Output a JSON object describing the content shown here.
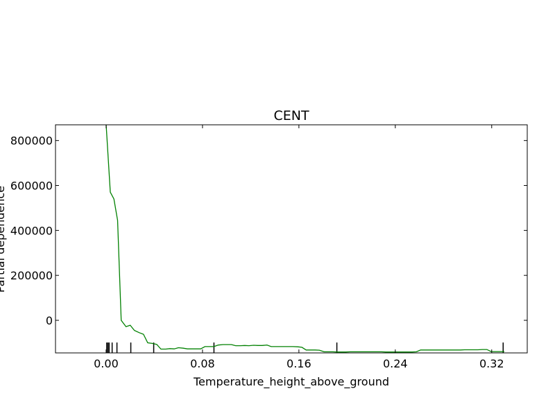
{
  "chart_data": {
    "type": "line",
    "title": "CENT",
    "xlabel": "Temperature_height_above_ground",
    "ylabel": "Partial dependence",
    "xlim": [
      -0.042,
      0.3495
    ],
    "ylim": [
      -145000,
      870000
    ],
    "x_ticks": [
      0.0,
      0.08,
      0.16,
      0.24,
      0.32
    ],
    "x_tick_labels": [
      "0.00",
      "0.08",
      "0.16",
      "0.24",
      "0.32"
    ],
    "y_ticks": [
      0,
      200000,
      400000,
      600000,
      800000
    ],
    "y_tick_labels": [
      "0",
      "200000",
      "400000",
      "600000",
      "800000"
    ],
    "grid": false,
    "series": [
      {
        "color": "#008000",
        "x": [
          0.0,
          0.0035,
          0.0065,
          0.0095,
          0.0125,
          0.0165,
          0.02,
          0.0235,
          0.0275,
          0.031,
          0.0345,
          0.0385,
          0.042,
          0.0455,
          0.0495,
          0.053,
          0.0565,
          0.06,
          0.064,
          0.0675,
          0.071,
          0.075,
          0.0785,
          0.082,
          0.086,
          0.0895,
          0.093,
          0.097,
          0.1005,
          0.104,
          0.1075,
          0.1115,
          0.115,
          0.1185,
          0.1225,
          0.126,
          0.1295,
          0.1335,
          0.137,
          0.1405,
          0.1445,
          0.148,
          0.1515,
          0.155,
          0.159,
          0.1625,
          0.166,
          0.17,
          0.1735,
          0.177,
          0.181,
          0.1845,
          0.188,
          0.1915,
          0.1955,
          0.199,
          0.2025,
          0.2065,
          0.21,
          0.2135,
          0.2175,
          0.221,
          0.2245,
          0.2285,
          0.232,
          0.2355,
          0.239,
          0.243,
          0.2465,
          0.25,
          0.254,
          0.2575,
          0.261,
          0.265,
          0.2685,
          0.272,
          0.276,
          0.2795,
          0.283,
          0.2865,
          0.2905,
          0.294,
          0.2975,
          0.3015,
          0.305,
          0.3085,
          0.3125,
          0.316,
          0.3195,
          0.3235,
          0.327,
          0.3305
        ],
        "y": [
          870000,
          570000,
          540000,
          445000,
          0,
          -28000,
          -22000,
          -45000,
          -55000,
          -62000,
          -100000,
          -103000,
          -107000,
          -128000,
          -128000,
          -126000,
          -127000,
          -122000,
          -124000,
          -127000,
          -127000,
          -127000,
          -127000,
          -117000,
          -117000,
          -117000,
          -110000,
          -108000,
          -108000,
          -108000,
          -113000,
          -113000,
          -112000,
          -113000,
          -111000,
          -112000,
          -112000,
          -110000,
          -117000,
          -117000,
          -117000,
          -117000,
          -117000,
          -117000,
          -118000,
          -120000,
          -132000,
          -132000,
          -132000,
          -133000,
          -140000,
          -140000,
          -140000,
          -141000,
          -141000,
          -141000,
          -140000,
          -140000,
          -140000,
          -140000,
          -140000,
          -140000,
          -140000,
          -140000,
          -141000,
          -141000,
          -141000,
          -141000,
          -141000,
          -141000,
          -141000,
          -140000,
          -132000,
          -132000,
          -132000,
          -132000,
          -132000,
          -132000,
          -132000,
          -132000,
          -132000,
          -132000,
          -131000,
          -131000,
          -131000,
          -131000,
          -130000,
          -130000,
          -139000,
          -139000,
          -139000,
          -139000
        ]
      }
    ],
    "rug_x": [
      0.0005,
      0.0015,
      0.0025,
      0.005,
      0.009,
      0.0205,
      0.0395,
      0.0895,
      0.1915,
      0.3295
    ]
  }
}
